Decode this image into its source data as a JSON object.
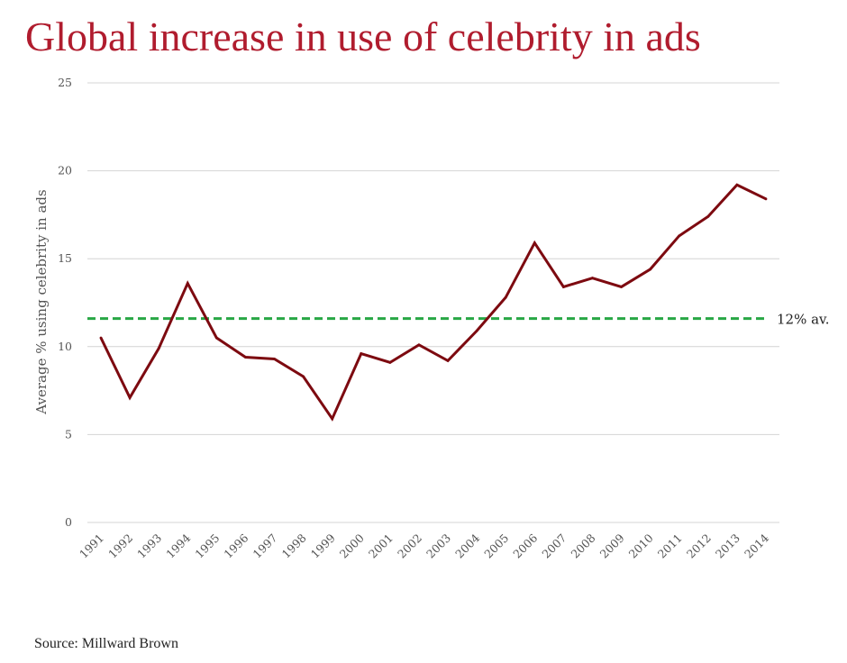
{
  "title": "Global increase in use of celebrity in ads",
  "source": "Source: Millward Brown",
  "chart_data": {
    "type": "line",
    "title": "Global increase in use of celebrity in ads",
    "xlabel": "",
    "ylabel": "Average % using celebrity in ads",
    "categories": [
      "1991",
      "1992",
      "1993",
      "1994",
      "1995",
      "1996",
      "1997",
      "1998",
      "1999",
      "2000",
      "2001",
      "2002",
      "2003",
      "2004",
      "2005",
      "2006",
      "2007",
      "2008",
      "2009",
      "2010",
      "2011",
      "2012",
      "2013",
      "2014"
    ],
    "series": [
      {
        "values": [
          10.5,
          7.1,
          9.9,
          13.6,
          10.5,
          9.4,
          9.3,
          8.3,
          5.9,
          9.6,
          9.1,
          10.1,
          9.2,
          10.9,
          12.8,
          15.9,
          13.4,
          13.9,
          13.4,
          14.4,
          16.3,
          17.4,
          19.2,
          18.4
        ],
        "color": "#7d0a10"
      }
    ],
    "reference_line": {
      "value": 11.6,
      "label": "12% av.",
      "color": "#28a745",
      "style": "dashed"
    },
    "ylim": [
      0,
      25
    ],
    "yticks": [
      0,
      5,
      10,
      15,
      20,
      25
    ],
    "grid": true,
    "legend": "none"
  }
}
